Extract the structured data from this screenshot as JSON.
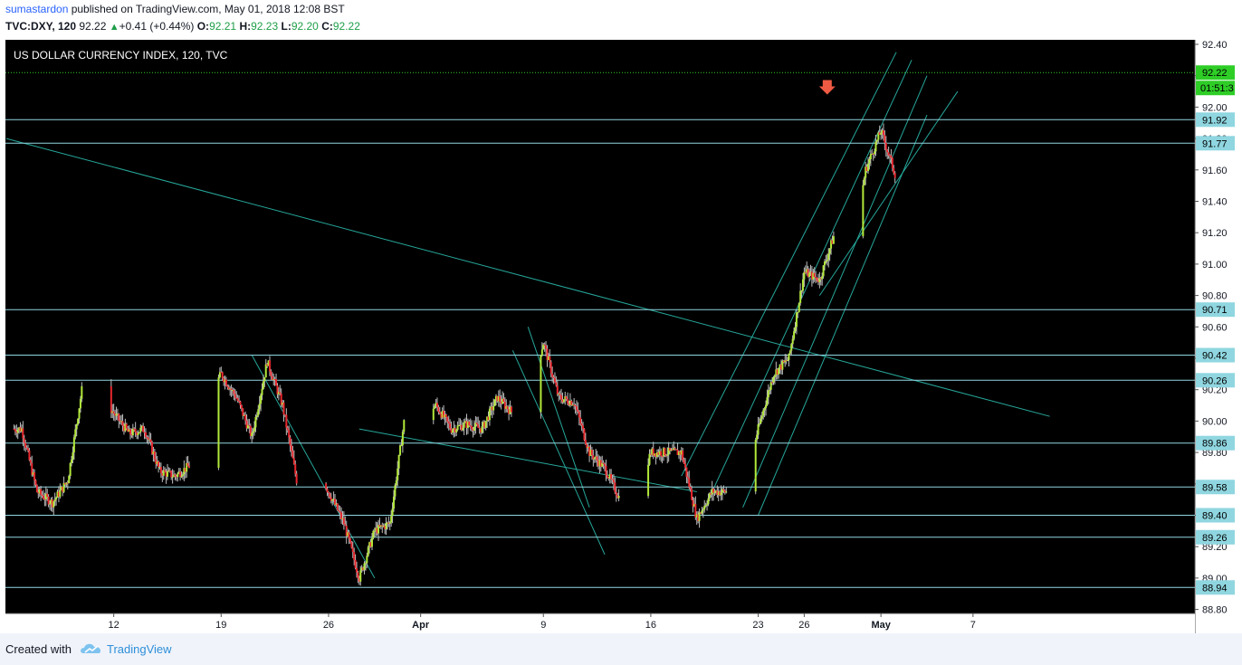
{
  "header": {
    "author": "sumastardon",
    "published_text": " published on TradingView.com, May 01, 2018 12:08 BST",
    "symbol": "TVC:DXY, 120",
    "last": "92.22",
    "change": "+0.41 (+0.44%)",
    "o_label": "O:",
    "o_value": "92.21",
    "h_label": "H:",
    "h_value": "92.23",
    "l_label": "L:",
    "l_value": "92.20",
    "c_label": "C:",
    "c_value": "92.22"
  },
  "footer": {
    "created_with": "Created with",
    "brand": "TradingView"
  },
  "colors": {
    "background": "#000000",
    "bull": "#b2e839",
    "bear": "#e8272d",
    "level_line": "#8fd6e0",
    "trend_line": "#26a79a",
    "price_line": "#35d12a",
    "price_label": "#2ece27",
    "arrow": "#ef5a43"
  },
  "chart_data": {
    "type": "candlestick",
    "title": "US DOLLAR CURRENCY INDEX, 120, TVC",
    "ylim": [
      88.7,
      92.45
    ],
    "yticks": [
      "92.40",
      "92.20",
      "92.00",
      "91.80",
      "91.60",
      "91.40",
      "91.20",
      "91.00",
      "90.80",
      "90.60",
      "90.40",
      "90.20",
      "90.00",
      "89.80",
      "89.60",
      "89.40",
      "89.20",
      "89.00",
      "88.80"
    ],
    "xticks": [
      "12",
      "19",
      "26",
      "Apr",
      "9",
      "16",
      "23",
      "26",
      "May",
      "7"
    ],
    "horizontal_levels": [
      "91.92",
      "91.77",
      "90.71",
      "90.42",
      "90.26",
      "89.86",
      "89.58",
      "89.40",
      "89.26",
      "88.94"
    ],
    "last_price": "92.22",
    "countdown": "01:51:3",
    "price_path": [
      {
        "date": "2018-03-06",
        "close": 89.95
      },
      {
        "date": "2018-03-07",
        "close": 89.55
      },
      {
        "date": "2018-03-08",
        "close": 89.48
      },
      {
        "date": "2018-03-09",
        "close": 89.62
      },
      {
        "date": "2018-03-10",
        "close": 90.25
      },
      {
        "date": "2018-03-11",
        "close": 90.2
      },
      {
        "date": "2018-03-12",
        "close": 90.05
      },
      {
        "date": "2018-03-13",
        "close": 89.92
      },
      {
        "date": "2018-03-14",
        "close": 89.95
      },
      {
        "date": "2018-03-15",
        "close": 89.68
      },
      {
        "date": "2018-03-16",
        "close": 89.65
      },
      {
        "date": "2018-03-17",
        "close": 89.72
      },
      {
        "date": "2018-03-18",
        "close": 90.12
      },
      {
        "date": "2018-03-19",
        "close": 90.3
      },
      {
        "date": "2018-03-20",
        "close": 90.15
      },
      {
        "date": "2018-03-21",
        "close": 89.9
      },
      {
        "date": "2018-03-22",
        "close": 90.38
      },
      {
        "date": "2018-03-23",
        "close": 90.1
      },
      {
        "date": "2018-03-24",
        "close": 89.58
      },
      {
        "date": "2018-03-25",
        "close": 89.75
      },
      {
        "date": "2018-03-26",
        "close": 89.55
      },
      {
        "date": "2018-03-27",
        "close": 89.35
      },
      {
        "date": "2018-03-28",
        "close": 89.0
      },
      {
        "date": "2018-03-29",
        "close": 89.3
      },
      {
        "date": "2018-03-30",
        "close": 89.35
      },
      {
        "date": "2018-03-31",
        "close": 90.05
      },
      {
        "date": "2018-04-01",
        "close": 90.05
      },
      {
        "date": "2018-04-02",
        "close": 90.1
      },
      {
        "date": "2018-04-03",
        "close": 89.95
      },
      {
        "date": "2018-04-04",
        "close": 89.98
      },
      {
        "date": "2018-04-05",
        "close": 89.95
      },
      {
        "date": "2018-04-06",
        "close": 90.15
      },
      {
        "date": "2018-04-07",
        "close": 90.05
      },
      {
        "date": "2018-04-08",
        "close": 90.15
      },
      {
        "date": "2018-04-09",
        "close": 90.5
      },
      {
        "date": "2018-04-10",
        "close": 90.15
      },
      {
        "date": "2018-04-11",
        "close": 90.12
      },
      {
        "date": "2018-04-12",
        "close": 89.8
      },
      {
        "date": "2018-04-13",
        "close": 89.7
      },
      {
        "date": "2018-04-14",
        "close": 89.5
      },
      {
        "date": "2018-04-15",
        "close": 89.5
      },
      {
        "date": "2018-04-16",
        "close": 89.8
      },
      {
        "date": "2018-04-17",
        "close": 89.8
      },
      {
        "date": "2018-04-18",
        "close": 89.8
      },
      {
        "date": "2018-04-19",
        "close": 89.38
      },
      {
        "date": "2018-04-20",
        "close": 89.55
      },
      {
        "date": "2018-04-21",
        "close": 89.55
      },
      {
        "date": "2018-04-22",
        "close": 89.58
      },
      {
        "date": "2018-04-23",
        "close": 89.95
      },
      {
        "date": "2018-04-24",
        "close": 90.3
      },
      {
        "date": "2018-04-25",
        "close": 90.4
      },
      {
        "date": "2018-04-26",
        "close": 90.95
      },
      {
        "date": "2018-04-27",
        "close": 90.9
      },
      {
        "date": "2018-04-28",
        "close": 91.2
      },
      {
        "date": "2018-04-29",
        "close": 91.02
      },
      {
        "date": "2018-04-30",
        "close": 91.6
      },
      {
        "date": "2018-05-01",
        "close": 91.85
      },
      {
        "date": "2018-05-02",
        "close": 91.55
      },
      {
        "date": "2018-05-03",
        "close": 91.75
      },
      {
        "date": "2018-05-04",
        "close": 91.85
      },
      {
        "date": "2018-05-05",
        "close": 92.22
      }
    ]
  }
}
